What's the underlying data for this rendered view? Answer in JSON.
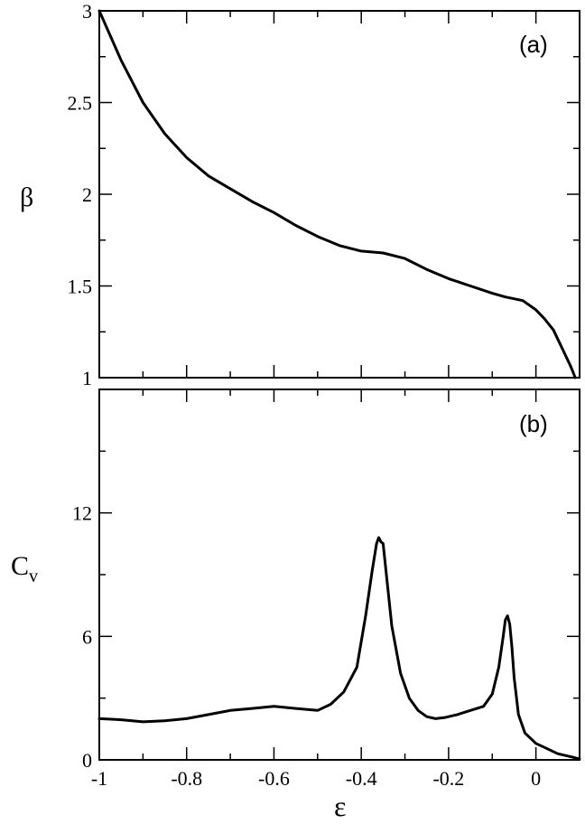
{
  "chart_data": [
    {
      "type": "line",
      "panel_label": "(a)",
      "ylabel": "β",
      "xlabel": "",
      "xlim": [
        -1.0,
        0.1
      ],
      "ylim": [
        1.0,
        3.0
      ],
      "yticks": [
        "1",
        "1.5",
        "2",
        "2.5",
        "3"
      ],
      "ytick_values": [
        1.0,
        1.5,
        2.0,
        2.5,
        3.0
      ],
      "series": [
        {
          "x": [
            -1.0,
            -0.95,
            -0.9,
            -0.85,
            -0.8,
            -0.75,
            -0.7,
            -0.65,
            -0.6,
            -0.55,
            -0.5,
            -0.45,
            -0.4,
            -0.35,
            -0.3,
            -0.25,
            -0.2,
            -0.15,
            -0.1,
            -0.07,
            -0.05,
            -0.03,
            0.0,
            0.02,
            0.04,
            0.06,
            0.08,
            0.09
          ],
          "y": [
            3.0,
            2.73,
            2.5,
            2.33,
            2.2,
            2.1,
            2.03,
            1.96,
            1.9,
            1.83,
            1.77,
            1.72,
            1.69,
            1.68,
            1.65,
            1.59,
            1.54,
            1.5,
            1.46,
            1.44,
            1.43,
            1.42,
            1.37,
            1.32,
            1.26,
            1.16,
            1.06,
            1.0
          ]
        }
      ]
    },
    {
      "type": "line",
      "panel_label": "(b)",
      "ylabel": "C",
      "ylabel_sub": "v",
      "xlabel": "ε",
      "xlim": [
        -1.0,
        0.1
      ],
      "ylim": [
        0,
        18
      ],
      "yticks": [
        "0",
        "6",
        "12"
      ],
      "ytick_values": [
        0,
        6,
        12
      ],
      "xticks": [
        "-1",
        "-0.8",
        "-0.6",
        "-0.4",
        "-0.2",
        "0"
      ],
      "xtick_values": [
        -1.0,
        -0.8,
        -0.6,
        -0.4,
        -0.2,
        0.0
      ],
      "series": [
        {
          "x": [
            -1.0,
            -0.95,
            -0.9,
            -0.85,
            -0.8,
            -0.75,
            -0.7,
            -0.65,
            -0.6,
            -0.55,
            -0.5,
            -0.47,
            -0.44,
            -0.41,
            -0.39,
            -0.375,
            -0.365,
            -0.36,
            -0.355,
            -0.35,
            -0.345,
            -0.34,
            -0.33,
            -0.31,
            -0.29,
            -0.27,
            -0.25,
            -0.23,
            -0.21,
            -0.18,
            -0.15,
            -0.12,
            -0.1,
            -0.085,
            -0.075,
            -0.07,
            -0.065,
            -0.06,
            -0.055,
            -0.05,
            -0.04,
            -0.025,
            -0.01,
            0.0,
            0.02,
            0.05,
            0.08,
            0.1
          ],
          "y": [
            2.0,
            1.95,
            1.85,
            1.9,
            2.0,
            2.2,
            2.4,
            2.5,
            2.6,
            2.5,
            2.4,
            2.7,
            3.3,
            4.5,
            7.0,
            9.2,
            10.5,
            10.8,
            10.6,
            10.5,
            9.5,
            8.5,
            6.5,
            4.2,
            3.0,
            2.4,
            2.1,
            2.0,
            2.05,
            2.2,
            2.4,
            2.6,
            3.2,
            4.5,
            6.0,
            6.8,
            7.0,
            6.6,
            5.5,
            4.0,
            2.2,
            1.3,
            1.0,
            0.8,
            0.6,
            0.3,
            0.15,
            0.05
          ]
        }
      ]
    }
  ]
}
